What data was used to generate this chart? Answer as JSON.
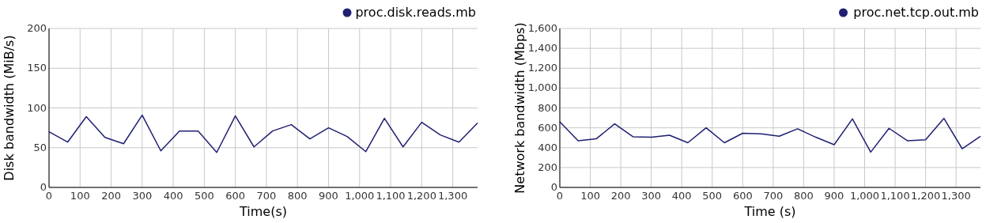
{
  "chart_data": [
    {
      "type": "line",
      "xlabel": "Time(s)",
      "ylabel": "Disk bandwidth (MiB/s)",
      "legend": "top right",
      "grid": true,
      "marker": "none",
      "line_style": "solid",
      "x": [
        0,
        60,
        120,
        180,
        240,
        300,
        360,
        420,
        480,
        540,
        600,
        660,
        720,
        780,
        840,
        900,
        960,
        1020,
        1080,
        1140,
        1200,
        1260,
        1320,
        1380
      ],
      "series": [
        {
          "name": "proc.disk.reads.mb",
          "color": "#1f1f73",
          "values": [
            70,
            57,
            89,
            63,
            55,
            91,
            46,
            71,
            71,
            44,
            90,
            51,
            71,
            79,
            61,
            75,
            64,
            45,
            87,
            51,
            82,
            66,
            57,
            81
          ]
        }
      ],
      "xlim": [
        0,
        1380
      ],
      "xticks": [
        0,
        100,
        200,
        300,
        400,
        500,
        600,
        700,
        800,
        900,
        {
          "value": 1000,
          "label": "1,000"
        },
        {
          "value": 1100,
          "label": "1,100"
        },
        {
          "value": 1200,
          "label": "1,200"
        },
        {
          "value": 1300,
          "label": "1,300"
        }
      ],
      "ylim": [
        0,
        200
      ],
      "yticks": [
        0,
        50,
        100,
        150,
        200
      ]
    },
    {
      "type": "line",
      "xlabel": "Time (s)",
      "ylabel": "Network bandwidth (Mbps)",
      "legend": "top right",
      "grid": true,
      "marker": "none",
      "line_style": "solid",
      "x": [
        0,
        60,
        120,
        180,
        240,
        300,
        360,
        420,
        480,
        540,
        600,
        660,
        720,
        780,
        840,
        900,
        960,
        1020,
        1080,
        1140,
        1200,
        1260,
        1320,
        1380
      ],
      "series": [
        {
          "name": "proc.net.tcp.out.mb",
          "color": "#1f1f73",
          "values": [
            660,
            470,
            490,
            640,
            510,
            505,
            525,
            450,
            600,
            450,
            545,
            540,
            515,
            590,
            505,
            430,
            690,
            355,
            595,
            470,
            480,
            695,
            390,
            515
          ]
        }
      ],
      "xlim": [
        0,
        1380
      ],
      "xticks": [
        0,
        100,
        200,
        300,
        400,
        500,
        600,
        700,
        800,
        900,
        {
          "value": 1000,
          "label": "1,000"
        },
        {
          "value": 1100,
          "label": "1,100"
        },
        {
          "value": 1200,
          "label": "1,200"
        },
        {
          "value": 1300,
          "label": "1,300"
        }
      ],
      "ylim": [
        0,
        1600
      ],
      "yticks": [
        0,
        200,
        400,
        600,
        800,
        {
          "value": 1000,
          "label": "1,000"
        },
        {
          "value": 1200,
          "label": "1,200"
        },
        {
          "value": 1400,
          "label": "1,400"
        },
        {
          "value": 1600,
          "label": "1,600"
        }
      ]
    }
  ]
}
